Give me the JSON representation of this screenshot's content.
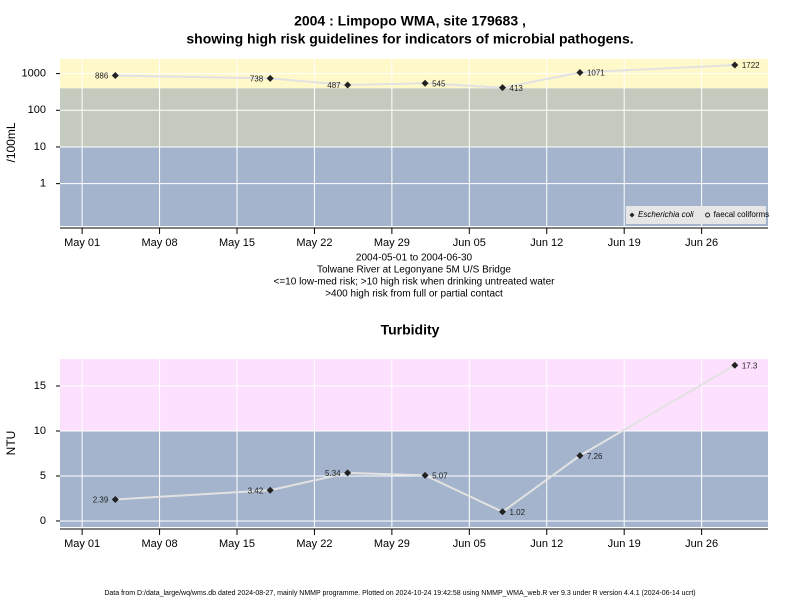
{
  "chart_data": [
    {
      "type": "line",
      "title": [
        "2004 : Limpopo WMA, site 179683 ,",
        "showing high risk guidelines for indicators of microbial pathogens."
      ],
      "ylabel": "/100mL",
      "caption": [
        "2004-05-01 to 2004-06-30",
        "Tolwane River at Legonyane 5M U/S Bridge",
        "<=10 low-med risk; >10 high risk when drinking untreated water",
        ">400 high risk from full or partial contact"
      ],
      "log_y": true,
      "grid": true,
      "legend": "bottom right",
      "x": [
        "2004-05-04",
        "2004-05-18",
        "2004-05-25",
        "2004-06-01",
        "2004-06-08",
        "2004-06-15",
        "2004-06-29"
      ],
      "series": [
        {
          "name": "Escherichia coli",
          "color": "#222222",
          "line_color": "#e2e2e2",
          "marker": "diamond",
          "values": [
            886,
            738,
            487,
            545,
            413,
            1071,
            1722
          ]
        },
        {
          "name": "faecal coliforms",
          "color": "#222222",
          "line_color": "#e2e2e2",
          "marker": "circle",
          "values": [
            null,
            null,
            null,
            null,
            null,
            null,
            null
          ]
        }
      ],
      "bands": [
        {
          "from": 0.07,
          "to": 10,
          "color": "#a3b4cc"
        },
        {
          "from": 10,
          "to": 400,
          "color": "#c4cbbe"
        },
        {
          "from": 400,
          "to": 2500,
          "color": "#fff8c8"
        }
      ],
      "xlim": [
        "2004-04-29",
        "2004-07-02"
      ],
      "xticks": [
        {
          "value": "2004-05-01",
          "label": "May 01"
        },
        {
          "value": "2004-05-08",
          "label": "May 08"
        },
        {
          "value": "2004-05-15",
          "label": "May 15"
        },
        {
          "value": "2004-05-22",
          "label": "May 22"
        },
        {
          "value": "2004-05-29",
          "label": "May 29"
        },
        {
          "value": "2004-06-05",
          "label": "Jun 05"
        },
        {
          "value": "2004-06-12",
          "label": "Jun 12"
        },
        {
          "value": "2004-06-19",
          "label": "Jun 19"
        },
        {
          "value": "2004-06-26",
          "label": "Jun 26"
        }
      ],
      "ylim": [
        0.07,
        2500
      ],
      "yticks": [
        1,
        10,
        100,
        1000
      ]
    },
    {
      "type": "line",
      "title": [
        "Turbidity"
      ],
      "ylabel": "NTU",
      "log_y": false,
      "grid": true,
      "x": [
        "2004-05-04",
        "2004-05-18",
        "2004-05-25",
        "2004-06-01",
        "2004-06-08",
        "2004-06-15",
        "2004-06-29"
      ],
      "series": [
        {
          "color": "#222222",
          "line_color": "#e2e2e2",
          "marker": "diamond",
          "values": [
            2.39,
            3.42,
            5.34,
            5.07,
            1.02,
            7.26,
            17.3
          ]
        }
      ],
      "bands": [
        {
          "from": -0.67,
          "to": 10,
          "color": "#a3b4cc"
        },
        {
          "from": 10,
          "to": 18,
          "color": "#fde0fd"
        }
      ],
      "xlim": [
        "2004-04-29",
        "2004-07-02"
      ],
      "xticks": [
        {
          "value": "2004-05-01",
          "label": "May 01"
        },
        {
          "value": "2004-05-08",
          "label": "May 08"
        },
        {
          "value": "2004-05-15",
          "label": "May 15"
        },
        {
          "value": "2004-05-22",
          "label": "May 22"
        },
        {
          "value": "2004-05-29",
          "label": "May 29"
        },
        {
          "value": "2004-06-05",
          "label": "Jun 05"
        },
        {
          "value": "2004-06-12",
          "label": "Jun 12"
        },
        {
          "value": "2004-06-19",
          "label": "Jun 19"
        },
        {
          "value": "2004-06-26",
          "label": "Jun 26"
        }
      ],
      "ylim": [
        -0.67,
        18
      ],
      "yticks": [
        0,
        5,
        10,
        15
      ]
    }
  ],
  "footer": "Data from D:/data_large/wq/wms.db dated 2024-08-27, mainly NMMP programme. Plotted on 2024-10-24 19:42:58 using NMMP_WMA_web.R ver 9.3 under R version 4.4.1 (2024-06-14 ucrt)"
}
